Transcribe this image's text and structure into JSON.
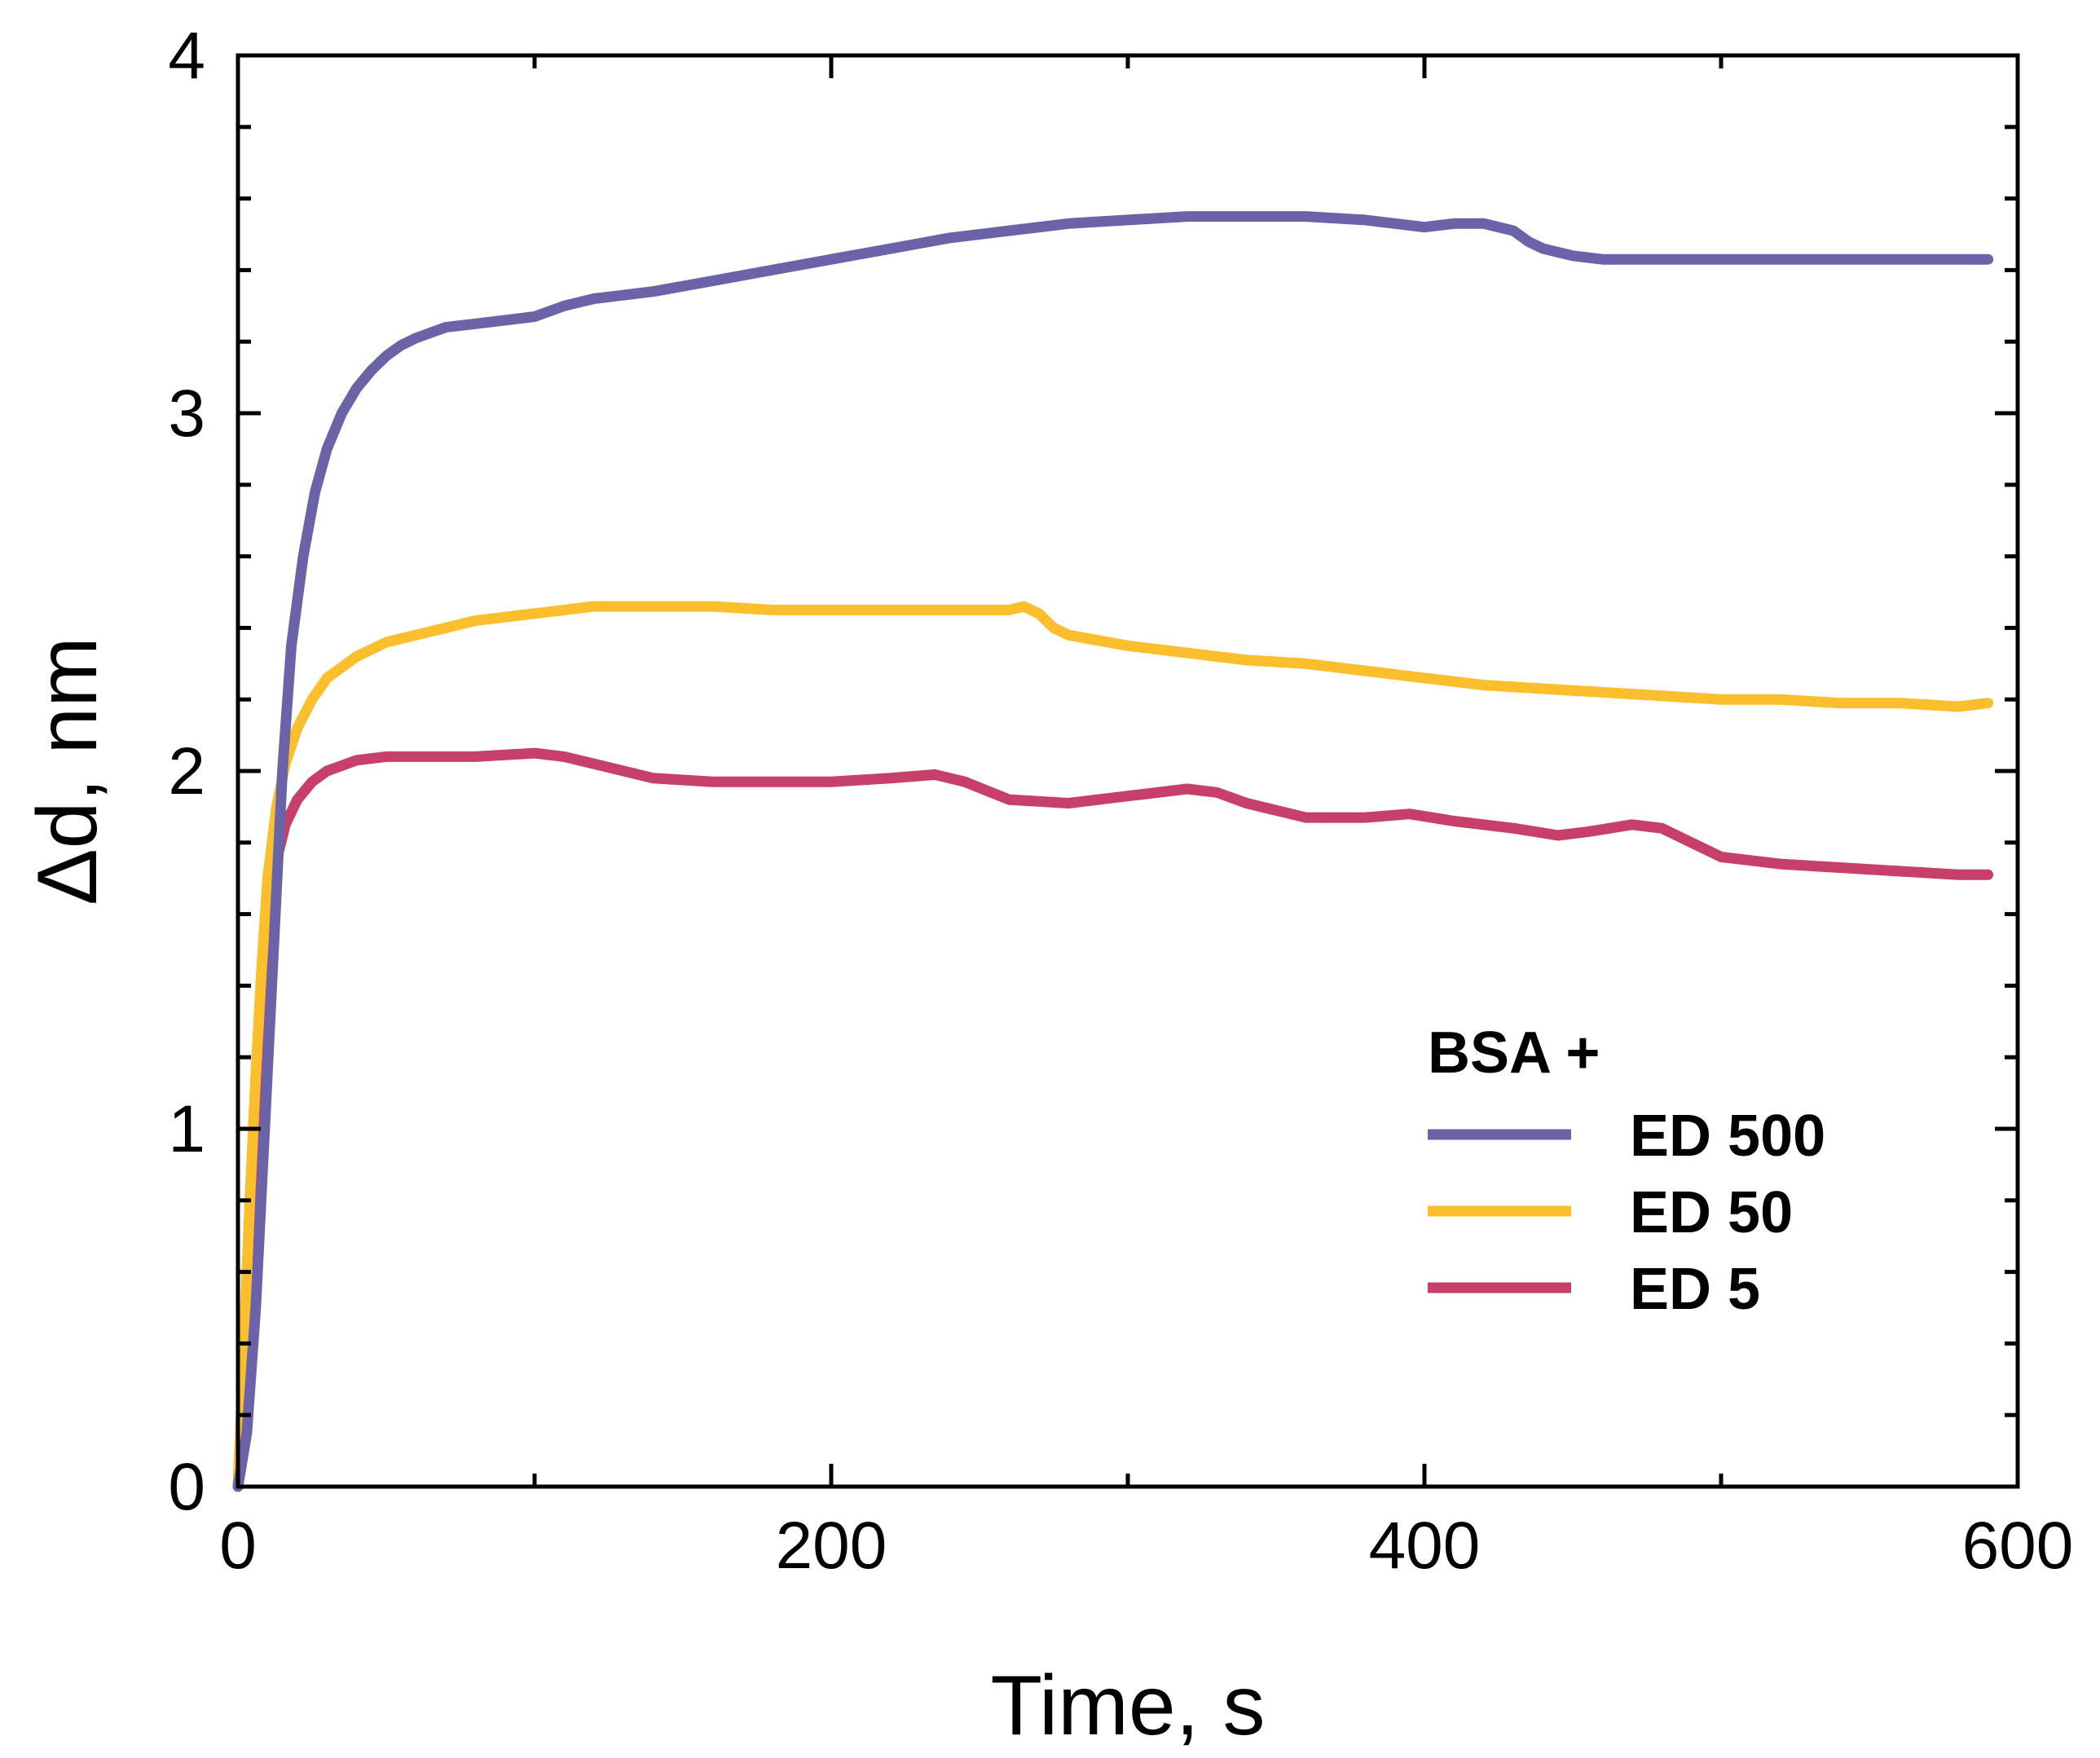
{
  "chart_data": {
    "type": "line",
    "title": "",
    "xlabel": "Time, s",
    "ylabel": "Δd, nm",
    "xlim": [
      0,
      600
    ],
    "ylim": [
      0,
      4
    ],
    "xticks": [
      0,
      200,
      400,
      600
    ],
    "xtick_labels": [
      "0",
      "200",
      "400",
      "600"
    ],
    "yticks": [
      0,
      1,
      2,
      3,
      4
    ],
    "ytick_labels": [
      "0",
      "1",
      "2",
      "3",
      "4"
    ],
    "x_minor_step": 100,
    "y_minor_step": 0.2,
    "grid": false,
    "legend": {
      "title": "BSA +",
      "placement": "lower-right"
    },
    "series": [
      {
        "name": "ED 500",
        "color": "#6a63a8",
        "x": [
          0,
          3,
          6,
          9,
          12,
          15,
          18,
          22,
          26,
          30,
          35,
          40,
          45,
          50,
          55,
          60,
          70,
          80,
          90,
          100,
          110,
          120,
          130,
          140,
          160,
          180,
          200,
          220,
          240,
          260,
          280,
          300,
          320,
          340,
          360,
          380,
          400,
          410,
          420,
          430,
          435,
          440,
          450,
          460,
          480,
          500,
          520,
          540,
          560,
          580,
          590
        ],
        "y": [
          0,
          0.15,
          0.5,
          1.0,
          1.5,
          2.0,
          2.35,
          2.6,
          2.78,
          2.9,
          3.0,
          3.07,
          3.12,
          3.16,
          3.19,
          3.21,
          3.24,
          3.25,
          3.26,
          3.27,
          3.3,
          3.32,
          3.33,
          3.34,
          3.37,
          3.4,
          3.43,
          3.46,
          3.49,
          3.51,
          3.53,
          3.54,
          3.55,
          3.55,
          3.55,
          3.54,
          3.52,
          3.53,
          3.53,
          3.51,
          3.48,
          3.46,
          3.44,
          3.43,
          3.43,
          3.43,
          3.43,
          3.43,
          3.43,
          3.43,
          3.43
        ]
      },
      {
        "name": "ED 50",
        "color": "#fbbf2e",
        "x": [
          0,
          2,
          4,
          6,
          8,
          10,
          13,
          16,
          20,
          25,
          30,
          40,
          50,
          60,
          70,
          80,
          100,
          120,
          140,
          160,
          180,
          200,
          220,
          240,
          260,
          265,
          270,
          275,
          280,
          300,
          320,
          340,
          360,
          380,
          400,
          420,
          440,
          460,
          480,
          500,
          520,
          540,
          560,
          580,
          590
        ],
        "y": [
          0,
          0.4,
          0.8,
          1.15,
          1.45,
          1.7,
          1.9,
          2.02,
          2.12,
          2.2,
          2.26,
          2.32,
          2.36,
          2.38,
          2.4,
          2.42,
          2.44,
          2.46,
          2.46,
          2.46,
          2.45,
          2.45,
          2.45,
          2.45,
          2.45,
          2.46,
          2.44,
          2.4,
          2.38,
          2.35,
          2.33,
          2.31,
          2.3,
          2.28,
          2.26,
          2.24,
          2.23,
          2.22,
          2.21,
          2.2,
          2.2,
          2.19,
          2.19,
          2.18,
          2.19
        ]
      },
      {
        "name": "ED 5",
        "color": "#c6406a",
        "x": [
          0,
          2,
          4,
          6,
          8,
          10,
          13,
          16,
          20,
          25,
          30,
          40,
          50,
          60,
          80,
          100,
          110,
          120,
          140,
          160,
          180,
          200,
          220,
          235,
          245,
          260,
          280,
          300,
          320,
          330,
          340,
          360,
          380,
          395,
          410,
          430,
          445,
          455,
          470,
          480,
          490,
          500,
          520,
          540,
          560,
          580,
          590
        ],
        "y": [
          0,
          0.35,
          0.7,
          1.05,
          1.35,
          1.58,
          1.75,
          1.85,
          1.92,
          1.97,
          2.0,
          2.03,
          2.04,
          2.04,
          2.04,
          2.05,
          2.04,
          2.02,
          1.98,
          1.97,
          1.97,
          1.97,
          1.98,
          1.99,
          1.97,
          1.92,
          1.91,
          1.93,
          1.95,
          1.94,
          1.91,
          1.87,
          1.87,
          1.88,
          1.86,
          1.84,
          1.82,
          1.83,
          1.85,
          1.84,
          1.8,
          1.76,
          1.74,
          1.73,
          1.72,
          1.71,
          1.71
        ]
      }
    ]
  }
}
